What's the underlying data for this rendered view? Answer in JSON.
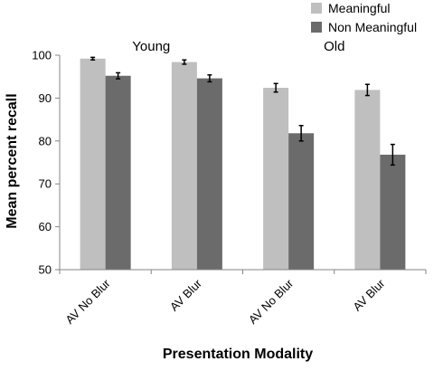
{
  "chart_data": {
    "type": "bar",
    "title": "",
    "xlabel": "Presentation Modality",
    "ylabel": "Mean percent recall",
    "ylim": [
      50,
      100
    ],
    "yticks": [
      50,
      60,
      70,
      80,
      90,
      100
    ],
    "grid": false,
    "legend_position": "top-right",
    "categories": [
      "AV No Blur",
      "AV Blur",
      "AV No Blur",
      "AV Blur"
    ],
    "group_labels": [
      {
        "label": "Young",
        "categories": [
          0,
          1
        ]
      },
      {
        "label": "Old",
        "categories": [
          2,
          3
        ]
      }
    ],
    "series": [
      {
        "name": "Meaningful",
        "color": "#bfbfbf",
        "values": [
          99.2,
          98.4,
          92.4,
          91.9
        ],
        "errors": [
          0.3,
          0.5,
          1.0,
          1.3
        ]
      },
      {
        "name": "Non Meaningful",
        "color": "#6b6b6b",
        "values": [
          95.2,
          94.6,
          81.8,
          76.8
        ],
        "errors": [
          0.7,
          0.8,
          1.8,
          2.4
        ]
      }
    ]
  }
}
